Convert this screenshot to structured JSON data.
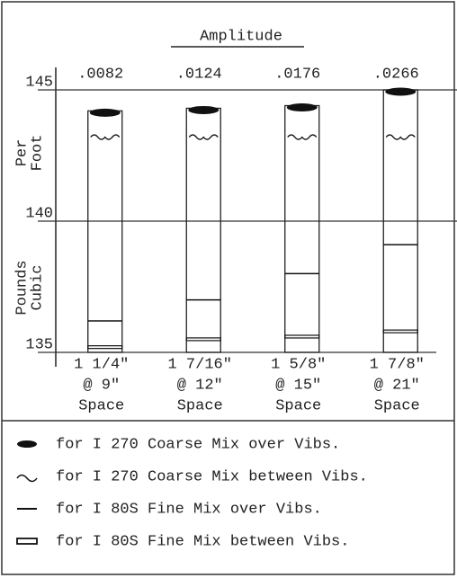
{
  "chart_data": {
    "type": "column-levels",
    "title": "Amplitude",
    "amplitudes": [
      ".0082",
      ".0124",
      ".0176",
      ".0266"
    ],
    "categories": [
      [
        "1 1/4\"",
        "@ 9\"",
        "Space"
      ],
      [
        "1 7/16\"",
        "@ 12\"",
        "Space"
      ],
      [
        "1 5/8\"",
        "@ 15\"",
        "Space"
      ],
      [
        "1 7/8\"",
        "@ 21\"",
        "Space"
      ]
    ],
    "y_label": [
      [
        "Pounds",
        "Cubic"
      ],
      [
        "Per",
        "Foot"
      ]
    ],
    "ylim": [
      135,
      145
    ],
    "yticks": [
      135,
      140,
      145
    ],
    "grid": true,
    "series": [
      {
        "name": "for I 270 Coarse Mix over Vibs.",
        "color": "#111111",
        "marker": "ellipse",
        "values": [
          144.2,
          144.3,
          144.4,
          145.0
        ]
      },
      {
        "name": "for I 270 Coarse Mix between Vibs.",
        "color": "#111111",
        "marker": "wave",
        "values": [
          143.2,
          143.2,
          143.2,
          143.2
        ]
      },
      {
        "name": "for I 80S Fine Mix over Vibs.",
        "color": "#111111",
        "marker": "line",
        "values": [
          136.2,
          137.0,
          138.0,
          139.1
        ]
      },
      {
        "name": "for I 80S Fine Mix between Vibs.",
        "color": "#111111",
        "marker": "double",
        "values": [
          135.2,
          135.5,
          135.6,
          135.8
        ]
      }
    ]
  }
}
